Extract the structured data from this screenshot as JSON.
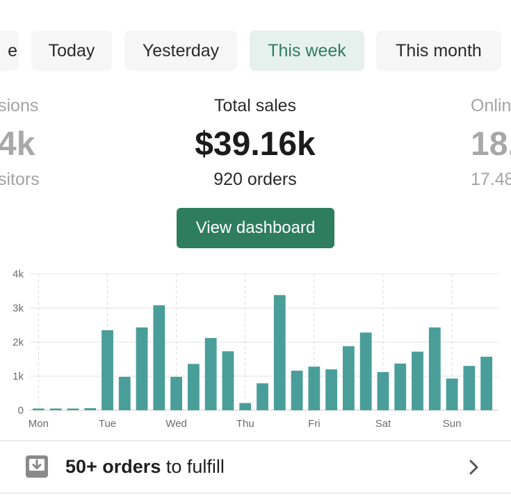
{
  "filters": {
    "partial_label": "e",
    "today": "Today",
    "yesterday": "Yesterday",
    "this_week": "This week",
    "this_month": "This month",
    "active_color": "#2e7d62"
  },
  "stats": {
    "left": {
      "label": "sions",
      "value": "4k",
      "sub": "sitors"
    },
    "center": {
      "label": "Total sales",
      "value": "$39.16k",
      "sub": "920 orders"
    },
    "right": {
      "label": "Onlin",
      "value": "18.",
      "sub": "17.48"
    }
  },
  "dashboard_button": {
    "label": "View dashboard",
    "color": "#2e7d5e"
  },
  "chart_data": {
    "type": "bar",
    "bar_color": "#4a9e9a",
    "y_ticks": [
      "0",
      "1k",
      "2k",
      "3k",
      "4k"
    ],
    "ylim": [
      0,
      4000
    ],
    "x_day_labels": [
      "Mon",
      "Tue",
      "Wed",
      "Thu",
      "Fri",
      "Sat",
      "Sun"
    ],
    "values": [
      50,
      50,
      50,
      60,
      2350,
      980,
      2430,
      3080,
      980,
      1360,
      2120,
      1730,
      210,
      790,
      3380,
      1160,
      1280,
      1200,
      1880,
      2280,
      1120,
      1370,
      1720,
      2430,
      930,
      1300,
      1570
    ],
    "grid": true
  },
  "fulfill": {
    "bold_text": "50+ orders",
    "rest_text": " to fulfill",
    "icon": "download-tray-icon"
  }
}
